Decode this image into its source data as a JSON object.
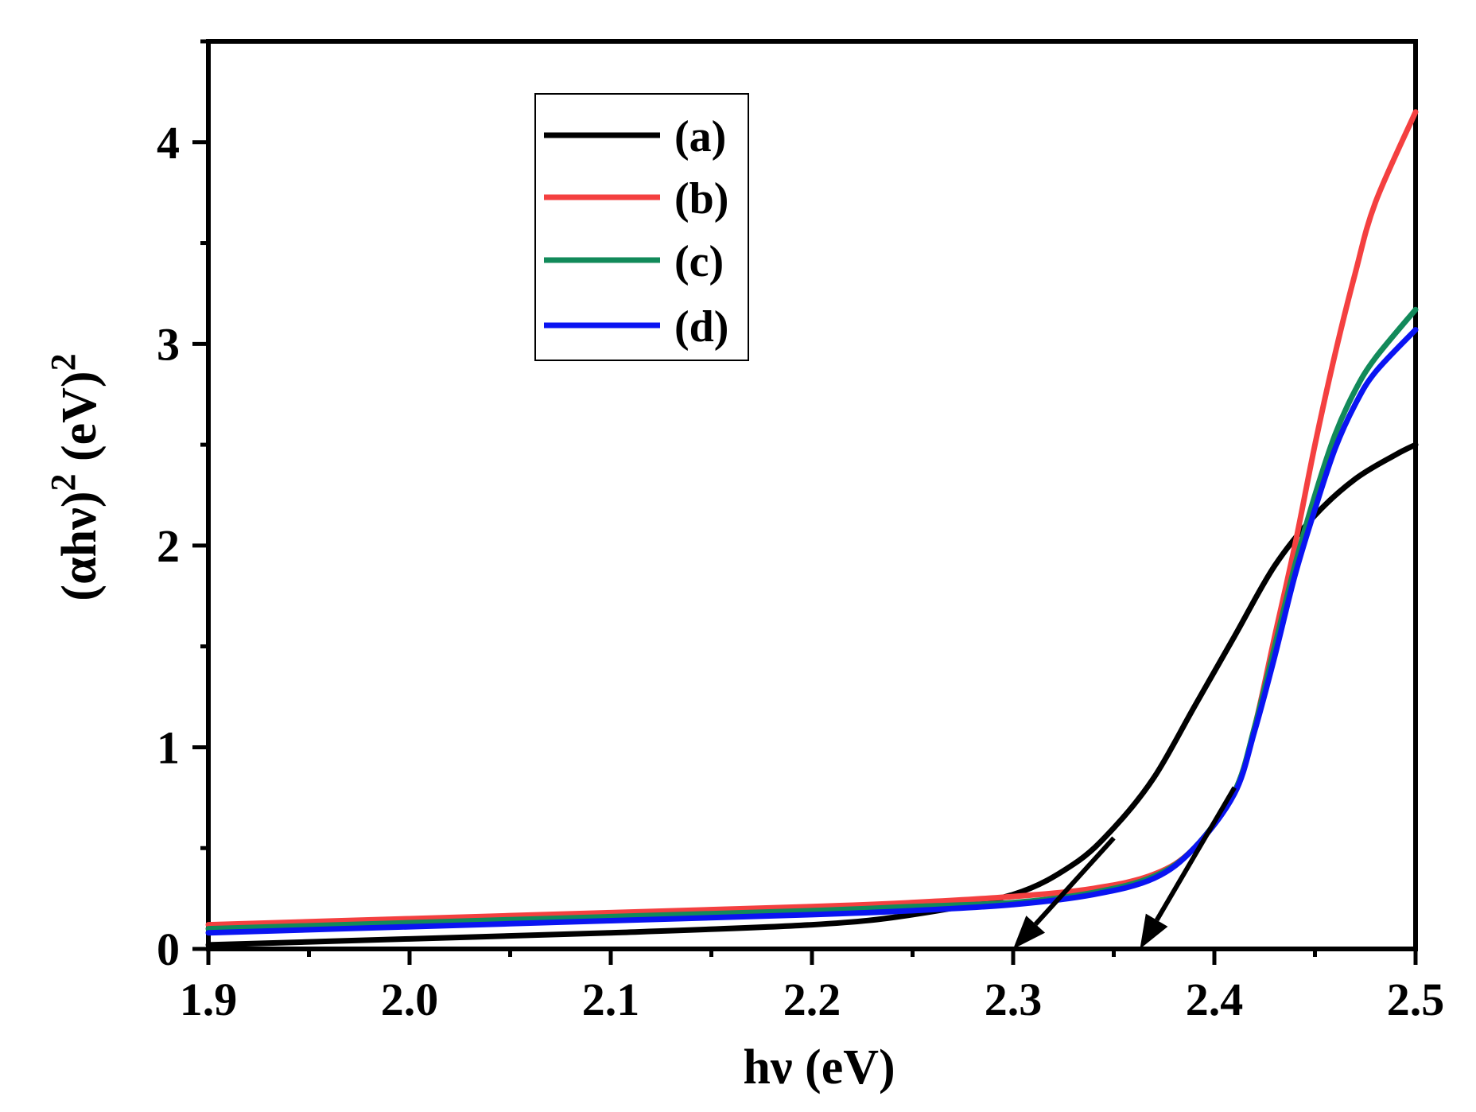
{
  "chart_data": {
    "type": "line",
    "title": "",
    "xlabel": "hν (eV)",
    "ylabel_base": "(αhν)",
    "ylabel_sup1": "2",
    "ylabel_unit": " (eV)",
    "ylabel_sup2": "2",
    "xlim": [
      1.9,
      2.5
    ],
    "ylim": [
      0,
      4.5
    ],
    "x_ticks": [
      1.9,
      2.0,
      2.1,
      2.2,
      2.3,
      2.4,
      2.5
    ],
    "x_tick_labels": [
      "1.9",
      "2.0",
      "2.1",
      "2.2",
      "2.3",
      "2.4",
      "2.5"
    ],
    "y_ticks": [
      0,
      1,
      2,
      3,
      4
    ],
    "y_tick_labels": [
      "0",
      "1",
      "2",
      "3",
      "4"
    ],
    "legend_position": "top-left",
    "grid": false,
    "series": [
      {
        "name": "(a)",
        "color": "#000000",
        "x": [
          1.9,
          2.0,
          2.1,
          2.2,
          2.25,
          2.3,
          2.33,
          2.35,
          2.37,
          2.39,
          2.41,
          2.43,
          2.45,
          2.47,
          2.49,
          2.5
        ],
        "y": [
          0.02,
          0.05,
          0.08,
          0.12,
          0.17,
          0.27,
          0.42,
          0.6,
          0.85,
          1.2,
          1.55,
          1.9,
          2.15,
          2.33,
          2.45,
          2.5
        ]
      },
      {
        "name": "(b)",
        "color": "#f44040",
        "x": [
          1.9,
          2.0,
          2.1,
          2.2,
          2.25,
          2.3,
          2.34,
          2.37,
          2.39,
          2.41,
          2.42,
          2.43,
          2.44,
          2.45,
          2.46,
          2.47,
          2.48,
          2.5
        ],
        "y": [
          0.12,
          0.15,
          0.18,
          0.21,
          0.23,
          0.26,
          0.3,
          0.37,
          0.5,
          0.78,
          1.1,
          1.55,
          2.0,
          2.5,
          2.95,
          3.35,
          3.7,
          4.15
        ]
      },
      {
        "name": "(c)",
        "color": "#128a5a",
        "x": [
          1.9,
          2.0,
          2.1,
          2.2,
          2.25,
          2.3,
          2.34,
          2.37,
          2.39,
          2.41,
          2.42,
          2.43,
          2.44,
          2.45,
          2.46,
          2.47,
          2.48,
          2.5
        ],
        "y": [
          0.1,
          0.13,
          0.16,
          0.19,
          0.21,
          0.23,
          0.28,
          0.36,
          0.5,
          0.78,
          1.1,
          1.5,
          1.9,
          2.25,
          2.55,
          2.77,
          2.93,
          3.17
        ]
      },
      {
        "name": "(d)",
        "color": "#0a14f2",
        "x": [
          1.9,
          2.0,
          2.1,
          2.2,
          2.25,
          2.3,
          2.34,
          2.37,
          2.39,
          2.41,
          2.42,
          2.43,
          2.44,
          2.45,
          2.46,
          2.47,
          2.48,
          2.5
        ],
        "y": [
          0.08,
          0.11,
          0.14,
          0.17,
          0.19,
          0.22,
          0.27,
          0.35,
          0.5,
          0.77,
          1.08,
          1.45,
          1.85,
          2.18,
          2.48,
          2.7,
          2.86,
          3.07
        ]
      }
    ],
    "annotations": [
      {
        "type": "arrow",
        "from": [
          2.35,
          0.55
        ],
        "to": [
          2.3,
          0.0
        ]
      },
      {
        "type": "arrow",
        "from": [
          2.41,
          0.8
        ],
        "to": [
          2.363,
          0.0
        ]
      }
    ]
  }
}
